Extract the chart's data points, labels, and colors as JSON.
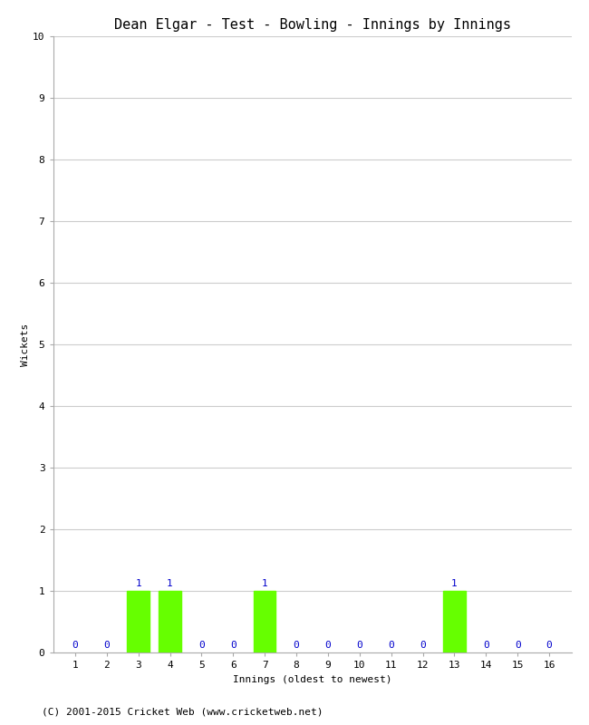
{
  "title": "Dean Elgar - Test - Bowling - Innings by Innings",
  "xlabel": "Innings (oldest to newest)",
  "ylabel": "Wickets",
  "innings": [
    1,
    2,
    3,
    4,
    5,
    6,
    7,
    8,
    9,
    10,
    11,
    12,
    13,
    14,
    15,
    16
  ],
  "wickets": [
    0,
    0,
    1,
    1,
    0,
    0,
    1,
    0,
    0,
    0,
    0,
    0,
    1,
    0,
    0,
    0
  ],
  "bar_color": "#66ff00",
  "annotation_color": "#0000cc",
  "ylim": [
    0,
    10
  ],
  "yticks": [
    0,
    1,
    2,
    3,
    4,
    5,
    6,
    7,
    8,
    9,
    10
  ],
  "background_color": "#ffffff",
  "grid_color": "#cccccc",
  "footer": "(C) 2001-2015 Cricket Web (www.cricketweb.net)",
  "title_fontsize": 11,
  "label_fontsize": 8,
  "tick_fontsize": 8,
  "footer_fontsize": 8,
  "bar_width": 0.7
}
